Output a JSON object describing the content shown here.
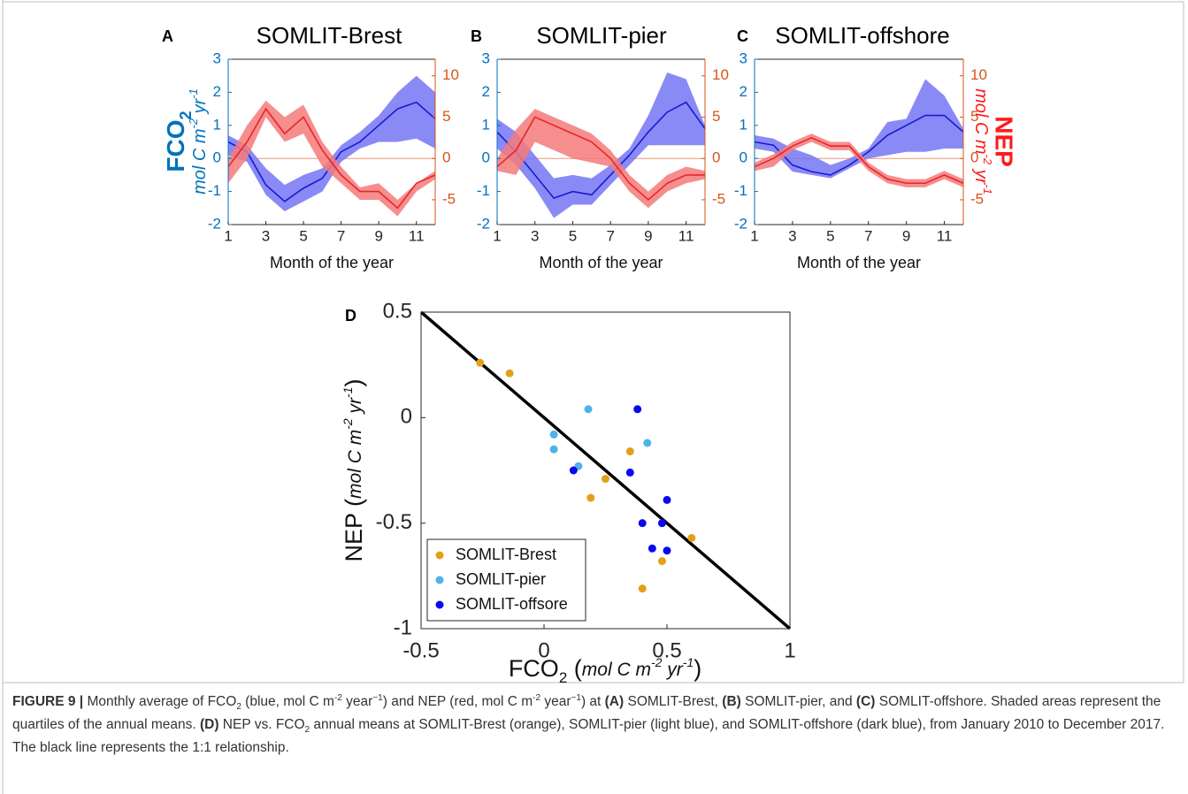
{
  "chart_data": [
    {
      "type": "line",
      "label": "A",
      "title": "SOMLIT-Brest",
      "x_label": "Month of the year",
      "y_label": [
        "FCO",
        "2"
      ],
      "y_label_units": [
        "mol C m",
        "-2",
        " yr",
        "-1"
      ],
      "x": [
        1,
        2,
        3,
        4,
        5,
        6,
        7,
        8,
        9,
        10,
        11,
        12
      ],
      "xlim": [
        1,
        12
      ],
      "xticks": [
        1,
        3,
        5,
        7,
        9,
        11
      ],
      "ylim": [
        -2,
        3
      ],
      "yticks": [
        -2,
        -1,
        0,
        1,
        2,
        3
      ],
      "y2lim": [
        -8,
        12
      ],
      "y2ticks": [
        -5,
        0,
        5,
        10
      ],
      "axis_color": "#0072BD",
      "axis2_color": "#D95319",
      "series": [
        {
          "axis": "y",
          "color": "#1a1acf",
          "band_color": "#7676f4",
          "values": [
            0.5,
            0.2,
            -0.8,
            -1.3,
            -0.9,
            -0.6,
            0.2,
            0.5,
            1.0,
            1.5,
            1.7,
            1.2
          ],
          "lower": [
            0.1,
            -0.1,
            -1.1,
            -1.6,
            -1.3,
            -1.0,
            -0.1,
            0.3,
            0.5,
            0.5,
            0.6,
            0.3
          ],
          "upper": [
            0.7,
            0.4,
            -0.3,
            -0.8,
            -0.5,
            -0.3,
            0.4,
            0.8,
            1.3,
            2.0,
            2.5,
            2.0
          ]
        },
        {
          "axis": "y2",
          "color": "#e8252a",
          "band_color": "#f47a7a",
          "values": [
            -1,
            2,
            6,
            3,
            5,
            1,
            -2,
            -4,
            -4,
            -6,
            -3,
            -2
          ],
          "lower": [
            -3,
            0,
            5,
            2,
            3,
            -1,
            -3,
            -5,
            -5,
            -7,
            -4,
            -2.5
          ],
          "upper": [
            0,
            4,
            7,
            5,
            6.5,
            2,
            -1,
            -3.5,
            -3,
            -5,
            -3,
            -1.5
          ]
        }
      ]
    },
    {
      "type": "line",
      "label": "B",
      "title": "SOMLIT-pier",
      "x_label": "Month of the year",
      "x": [
        1,
        2,
        3,
        4,
        5,
        6,
        7,
        8,
        9,
        10,
        11,
        12
      ],
      "xlim": [
        1,
        12
      ],
      "xticks": [
        1,
        3,
        5,
        7,
        9,
        11
      ],
      "ylim": [
        -2,
        3
      ],
      "yticks": [
        -2,
        -1,
        0,
        1,
        2,
        3
      ],
      "y2lim": [
        -8,
        12
      ],
      "y2ticks": [
        -5,
        0,
        5,
        10
      ],
      "axis_color": "#0072BD",
      "axis2_color": "#D95319",
      "series": [
        {
          "axis": "y",
          "color": "#1a1acf",
          "band_color": "#7676f4",
          "values": [
            0.8,
            0.2,
            -0.5,
            -1.2,
            -1.0,
            -1.1,
            -0.5,
            0.1,
            0.8,
            1.4,
            1.7,
            0.9
          ],
          "lower": [
            0.3,
            -0.2,
            -0.9,
            -1.8,
            -1.4,
            -1.4,
            -0.8,
            -0.2,
            0.4,
            0.4,
            0.4,
            0.4
          ],
          "upper": [
            1.2,
            0.8,
            0.1,
            -0.6,
            -0.5,
            -0.6,
            -0.2,
            0.3,
            1.3,
            2.6,
            2.4,
            1.0
          ]
        },
        {
          "axis": "y2",
          "color": "#e8252a",
          "band_color": "#f47a7a",
          "values": [
            -1,
            1,
            5,
            4,
            3,
            2,
            0,
            -3,
            -5,
            -3,
            -2,
            -2
          ],
          "lower": [
            -1.5,
            -2,
            2,
            1,
            0,
            -0.5,
            -1,
            -4,
            -6,
            -4,
            -3,
            -2.5
          ],
          "upper": [
            0,
            3.5,
            6,
            5,
            4,
            3,
            1,
            -2,
            -4,
            -2,
            -1,
            -1.5
          ]
        }
      ]
    },
    {
      "type": "line",
      "label": "C",
      "title": "SOMLIT-offshore",
      "x_label": "Month of the year",
      "y2_label": "NEP",
      "y2_label_units": [
        "mol C m",
        "-2",
        " yr",
        "-1"
      ],
      "x": [
        1,
        2,
        3,
        4,
        5,
        6,
        7,
        8,
        9,
        10,
        11,
        12
      ],
      "xlim": [
        1,
        12
      ],
      "xticks": [
        1,
        3,
        5,
        7,
        9,
        11
      ],
      "ylim": [
        -2,
        3
      ],
      "yticks": [
        -2,
        -1,
        0,
        1,
        2,
        3
      ],
      "y2lim": [
        -8,
        12
      ],
      "y2ticks": [
        -5,
        0,
        5,
        10
      ],
      "axis_color": "#0072BD",
      "axis2_color": "#D95319",
      "series": [
        {
          "axis": "y",
          "color": "#1a1acf",
          "band_color": "#7676f4",
          "values": [
            0.5,
            0.4,
            -0.2,
            -0.4,
            -0.5,
            -0.2,
            0.2,
            0.7,
            1.0,
            1.3,
            1.3,
            0.8
          ],
          "lower": [
            0.3,
            0.2,
            -0.4,
            -0.5,
            -0.6,
            -0.3,
            0,
            0.1,
            0.2,
            0.2,
            0.3,
            0.3
          ],
          "upper": [
            0.7,
            0.6,
            0.3,
            0.1,
            -0.2,
            0,
            0.3,
            1.1,
            1.2,
            2.4,
            1.9,
            0.9
          ]
        },
        {
          "axis": "y2",
          "color": "#e8252a",
          "band_color": "#f47a7a",
          "values": [
            -1,
            0,
            1.5,
            2.5,
            1.5,
            1.5,
            -1,
            -2.5,
            -3,
            -3,
            -2,
            -3
          ],
          "lower": [
            -1.5,
            -1,
            1,
            2,
            1,
            1,
            -1.5,
            -3,
            -3.5,
            -3.5,
            -2.5,
            -3.5
          ],
          "upper": [
            -0.5,
            0.5,
            2,
            3,
            2,
            2,
            -0.5,
            -2,
            -2.5,
            -2.5,
            -1.5,
            -2.5
          ]
        }
      ]
    },
    {
      "type": "scatter",
      "label": "D",
      "x_label": [
        "FCO",
        "2",
        " (",
        "mol C m",
        "-2",
        " yr",
        "-1",
        ")"
      ],
      "y_label": [
        "NEP (",
        "mol C m",
        "-2",
        " yr",
        "-1",
        ")"
      ],
      "xlim": [
        -0.5,
        1
      ],
      "xticks": [
        -0.5,
        0,
        0.5,
        1
      ],
      "ylim": [
        -1,
        0.5
      ],
      "yticks": [
        -1,
        -0.5,
        0,
        0.5
      ],
      "legend": "lower left",
      "reference_line": {
        "x": [
          -0.5,
          1
        ],
        "y": [
          0.5,
          -1
        ],
        "color": "#000000"
      },
      "series": [
        {
          "name": "SOMLIT-Brest",
          "color": "#e3a01a",
          "x": [
            -0.26,
            -0.14,
            0.19,
            0.25,
            0.35,
            0.4,
            0.48,
            0.6
          ],
          "y": [
            0.26,
            0.21,
            -0.38,
            -0.29,
            -0.16,
            -0.81,
            -0.68,
            -0.57
          ]
        },
        {
          "name": "SOMLIT-pier",
          "color": "#4fb3ea",
          "x": [
            0.04,
            0.04,
            0.14,
            0.18,
            0.42
          ],
          "y": [
            -0.08,
            -0.15,
            -0.23,
            0.04,
            -0.12
          ]
        },
        {
          "name": "SOMLIT-offsore",
          "color": "#0a0af0",
          "x": [
            0.12,
            0.35,
            0.38,
            0.4,
            0.44,
            0.48,
            0.5,
            0.5
          ],
          "y": [
            -0.25,
            -0.26,
            0.04,
            -0.5,
            -0.62,
            -0.5,
            -0.39,
            -0.63
          ]
        }
      ]
    }
  ],
  "caption": [
    "FIGURE 9 |",
    " Monthly average of FCO",
    "2",
    " (blue, mol C m",
    "-2",
    " year",
    "−1",
    ") and NEP (red, mol C m",
    "-2",
    " year",
    "−1",
    ") at ",
    "(A)",
    " SOMLIT-Brest, ",
    "(B)",
    " SOMLIT-pier, and ",
    "(C)",
    " SOMLIT-offshore. Shaded areas represent the quartiles of the annual means. ",
    "(D)",
    " NEP vs. FCO",
    "2",
    " annual means at SOMLIT-Brest (orange), SOMLIT-pier (light blue), and SOMLIT-offshore (dark blue), from January 2010 to December 2017. The black line represents the 1:1 relationship."
  ]
}
